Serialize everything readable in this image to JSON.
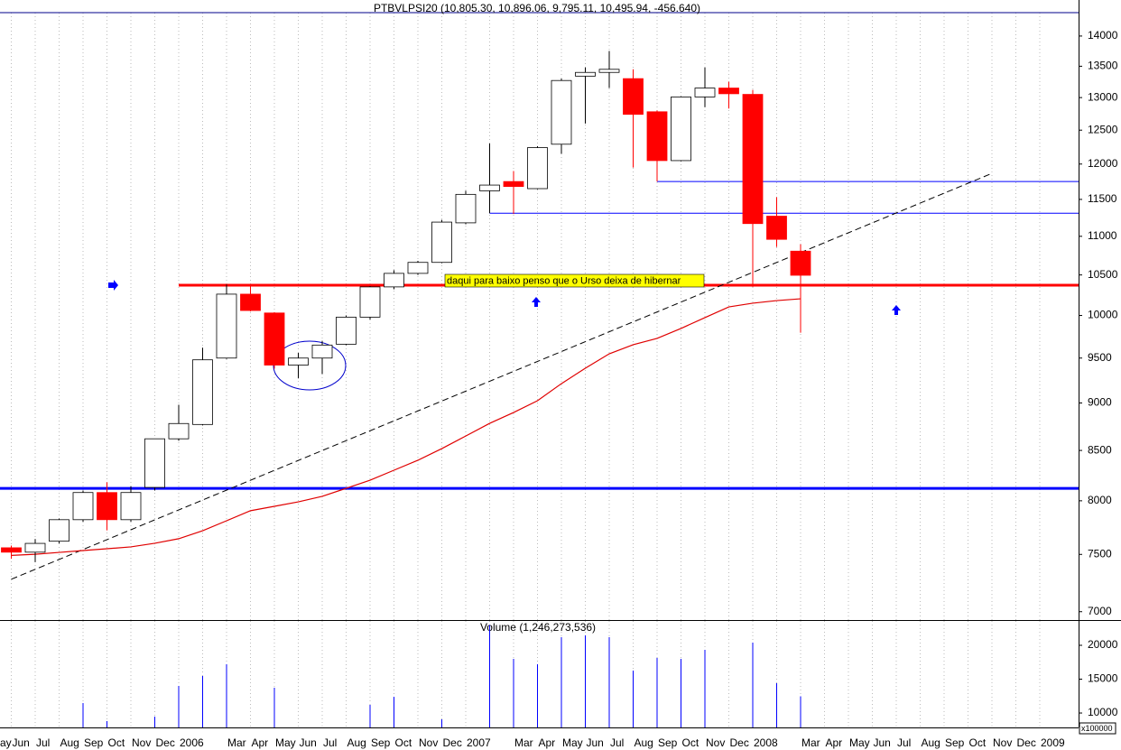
{
  "chart_data": [
    {
      "type": "candlestick",
      "title": "PTBVLPSI20 (10,805.30, 10,896.06, 9,795.11, 10,495.94, -456.640)",
      "annotation": "daqui para baixo penso que o Urso deixa de hibernar",
      "log_scale": true,
      "ylim": [
        6930,
        14400
      ],
      "yticks": [
        7000,
        7500,
        8000,
        8500,
        9000,
        9500,
        10000,
        10500,
        11000,
        11500,
        12000,
        12500,
        13000,
        13500,
        14000
      ],
      "up_color": "#ffffff",
      "down_color": "#ff0000",
      "open": [
        null,
        7560,
        7520,
        7620,
        7820,
        8080,
        7820,
        8130,
        8620,
        8770,
        9500,
        10260,
        10030,
        9420,
        9500,
        9660,
        9980,
        10350,
        10520,
        10660,
        11180,
        11620,
        11750,
        11650,
        12290,
        13340,
        13400,
        13300,
        12780,
        12050,
        13010,
        13150,
        13050,
        11270,
        10805.3,
        null,
        null,
        null,
        null,
        null,
        null,
        null,
        null,
        null,
        null
      ],
      "high": [
        null,
        7580,
        7640,
        7830,
        8100,
        8180,
        8140,
        8620,
        8980,
        9620,
        10380,
        10370,
        10040,
        9560,
        9700,
        10000,
        10360,
        10560,
        10680,
        11220,
        11620,
        12300,
        11900,
        12260,
        13300,
        13480,
        13750,
        13450,
        12800,
        13020,
        13480,
        13250,
        13120,
        11530,
        10896.06,
        null,
        null,
        null,
        null,
        null,
        null,
        null,
        null,
        null,
        null
      ],
      "low": [
        null,
        7460,
        7430,
        7600,
        7800,
        7720,
        7800,
        8100,
        8600,
        8760,
        9490,
        10050,
        9380,
        9270,
        9320,
        9650,
        9950,
        10320,
        10500,
        10650,
        11160,
        11310,
        11300,
        11640,
        12150,
        12600,
        13150,
        11950,
        11750,
        12040,
        12850,
        12830,
        10350,
        10860,
        9795.11,
        null,
        null,
        null,
        null,
        null,
        null,
        null,
        null,
        null,
        null
      ],
      "close": [
        null,
        7520,
        7600,
        7820,
        8080,
        7820,
        8080,
        8620,
        8780,
        9480,
        10260,
        10060,
        9420,
        9500,
        9650,
        9980,
        10350,
        10520,
        10660,
        11190,
        11570,
        11700,
        11680,
        12240,
        13270,
        13400,
        13450,
        12740,
        12050,
        13010,
        13150,
        13060,
        11170,
        10960,
        10495.94,
        null,
        null,
        null,
        null,
        null,
        null,
        null,
        null,
        null,
        null
      ],
      "moving_average": {
        "color": "#e00000",
        "values": [
          null,
          7491,
          7501,
          7518,
          7535,
          7551,
          7568,
          7601,
          7643,
          7717,
          7810,
          7905,
          7947,
          7990,
          8043,
          8121,
          8201,
          8300,
          8400,
          8519,
          8649,
          8782,
          8897,
          9024,
          9212,
          9384,
          9549,
          9654,
          9728,
          9845,
          9974,
          10104,
          10149,
          10181,
          10203,
          null,
          null,
          null,
          null,
          null,
          null,
          null,
          null,
          null,
          null
        ]
      },
      "hlines": [
        {
          "value": 8120,
          "color": "#0000ff",
          "start": 0,
          "width": 3
        },
        {
          "value": 10371,
          "color": "#ff0000",
          "start": 8,
          "width": 3
        },
        {
          "value": 11750,
          "color": "#0000ff",
          "start": 28,
          "width": 1
        },
        {
          "value": 11310,
          "color": "#0000ff",
          "start": 21,
          "width": 1
        }
      ],
      "trendline": {
        "color": "#000000",
        "x": [
          1,
          42
        ],
        "values": [
          7279,
          11866
        ]
      }
    },
    {
      "type": "bar",
      "title": "Volume (1,246,273,536)",
      "scale_label": "x100000",
      "color": "#0000ff",
      "categories": [
        "ay",
        "Jun",
        "Jul",
        "Aug",
        "Sep",
        "Oct",
        "Nov",
        "Dec",
        "2006",
        null,
        "Mar",
        "Apr",
        "May",
        "Jun",
        "Jul",
        "Aug",
        "Sep",
        "Oct",
        "Nov",
        "Dec",
        "2007",
        null,
        "Mar",
        "Apr",
        "May",
        "Jun",
        "Jul",
        "Aug",
        "Sep",
        "Oct",
        "Nov",
        "Dec",
        "2008",
        null,
        "Mar",
        "Apr",
        "May",
        "Jun",
        "Jul",
        "Aug",
        "Sep",
        "Oct",
        "Nov",
        "Dec",
        "2009"
      ],
      "ylim": [
        7870,
        23600
      ],
      "yticks": [
        10000,
        15000,
        20000
      ],
      "values": [
        null,
        null,
        null,
        null,
        11470,
        8800,
        null,
        9470,
        14000,
        15470,
        17200,
        null,
        13730,
        null,
        null,
        null,
        11200,
        12400,
        null,
        9070,
        null,
        23000,
        18000,
        17200,
        21200,
        21470,
        21200,
        16270,
        18130,
        18000,
        19330,
        null,
        20400,
        14400,
        12462.73536,
        null,
        null,
        null,
        null,
        null,
        null,
        null,
        null,
        null,
        null
      ]
    }
  ]
}
